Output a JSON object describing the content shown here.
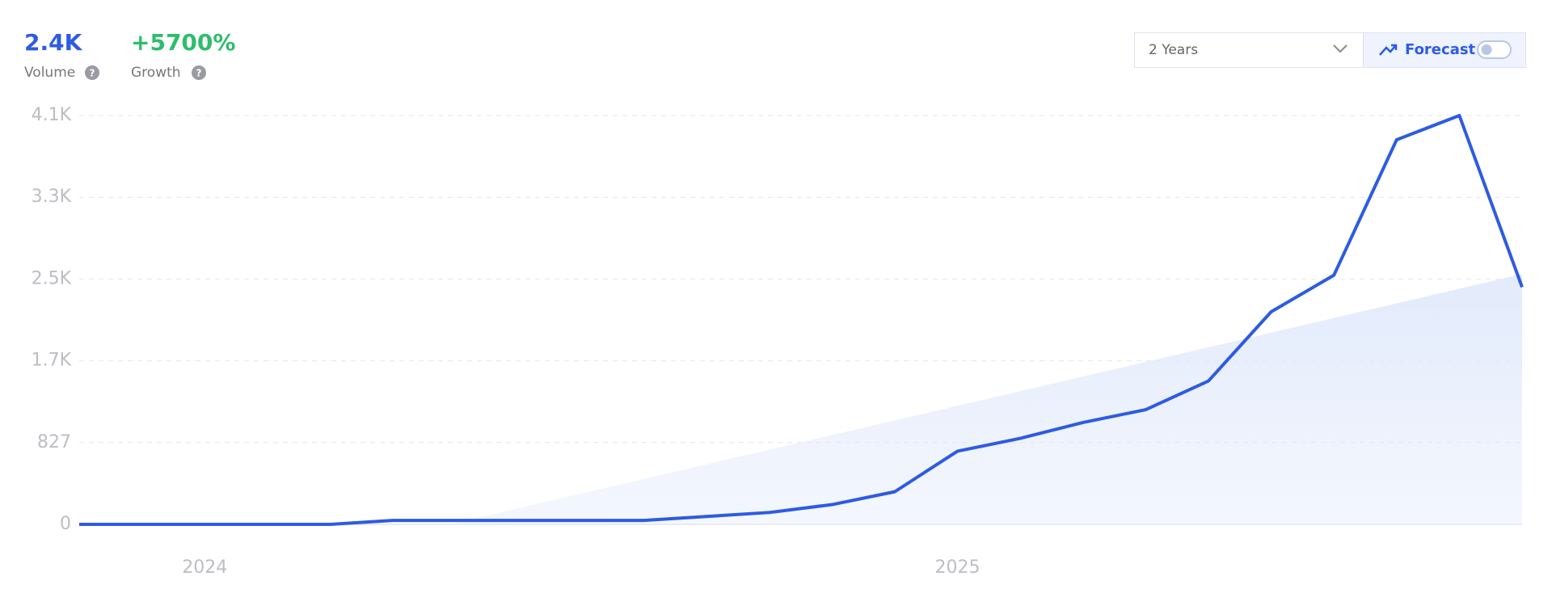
{
  "metrics": [
    {
      "value": "2.4K",
      "label": "Volume",
      "help": "?"
    },
    {
      "value": "+5700%",
      "label": "Growth",
      "help": "?"
    }
  ],
  "controls": {
    "range": "2 Years",
    "forecast": "Forecast"
  },
  "chart_data": {
    "type": "line",
    "categories": [
      null,
      null,
      "2024",
      null,
      null,
      null,
      null,
      null,
      null,
      null,
      null,
      null,
      null,
      null,
      "2025",
      null,
      null,
      null,
      null,
      null,
      null,
      null,
      null,
      null
    ],
    "values": [
      0,
      0,
      0,
      0,
      0,
      40,
      40,
      40,
      40,
      40,
      80,
      120,
      200,
      330,
      740,
      870,
      1030,
      1160,
      1450,
      2150,
      2520,
      3890,
      4135,
      2400
    ],
    "trend_values": [
      null,
      null,
      null,
      null,
      null,
      null,
      15,
      163,
      311,
      459,
      607,
      755,
      903,
      1051,
      1199,
      1347,
      1495,
      1643,
      1791,
      1939,
      2087,
      2235,
      2383,
      2531
    ],
    "color": "#2d5be3",
    "area_color": "#dfe8fb",
    "ylim": [
      0,
      4135
    ],
    "yticks": [
      0,
      827,
      {
        "value": 1654,
        "label": "1.7K"
      },
      {
        "value": 2481,
        "label": "2.5K"
      },
      {
        "value": 3308,
        "label": "3.3K"
      },
      {
        "value": 4135,
        "label": "4.1K"
      }
    ],
    "grid": true
  }
}
